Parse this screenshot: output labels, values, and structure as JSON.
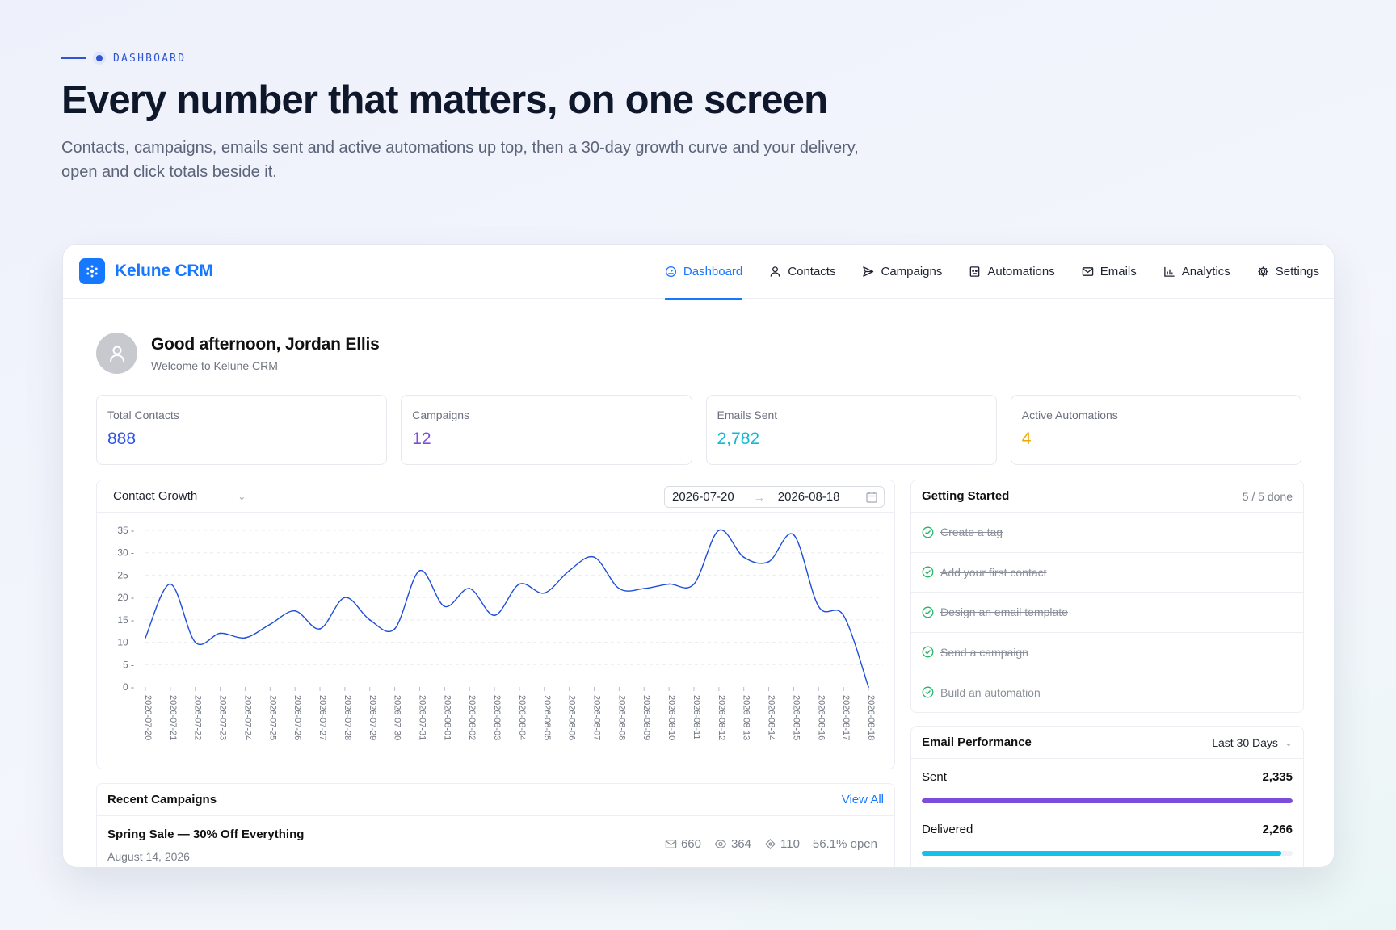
{
  "hero": {
    "eyebrow": "DASHBOARD",
    "title": "Every number that matters, on one screen",
    "subtitle": "Contacts, campaigns, emails sent and active automations up top, then a 30-day growth curve and your delivery, open and click totals beside it."
  },
  "app": {
    "brand": "Kelune CRM",
    "accent": "#1677ff",
    "nav": [
      {
        "label": "Dashboard",
        "icon": "gauge-icon",
        "active": true
      },
      {
        "label": "Contacts",
        "icon": "user-icon",
        "active": false
      },
      {
        "label": "Campaigns",
        "icon": "send-icon",
        "active": false
      },
      {
        "label": "Automations",
        "icon": "robot-icon",
        "active": false
      },
      {
        "label": "Emails",
        "icon": "mail-icon",
        "active": false
      },
      {
        "label": "Analytics",
        "icon": "bar-chart-icon",
        "active": false
      },
      {
        "label": "Settings",
        "icon": "gear-icon",
        "active": false
      }
    ]
  },
  "greeting": {
    "title": "Good afternoon, Jordan Ellis",
    "subtitle": "Welcome to Kelune CRM"
  },
  "stats": [
    {
      "label": "Total Contacts",
      "value": "888",
      "color": "#2f54eb"
    },
    {
      "label": "Campaigns",
      "value": "12",
      "color": "#7c4ddb"
    },
    {
      "label": "Emails Sent",
      "value": "2,782",
      "color": "#13b8d4"
    },
    {
      "label": "Active Automations",
      "value": "4",
      "color": "#f0a500"
    }
  ],
  "growth": {
    "selector": "Contact Growth",
    "date_start": "2026-07-20",
    "date_end": "2026-08-18"
  },
  "chart_data": {
    "type": "line",
    "x": [
      "2026-07-20",
      "2026-07-21",
      "2026-07-22",
      "2026-07-23",
      "2026-07-24",
      "2026-07-25",
      "2026-07-26",
      "2026-07-27",
      "2026-07-28",
      "2026-07-29",
      "2026-07-30",
      "2026-07-31",
      "2026-08-01",
      "2026-08-02",
      "2026-08-03",
      "2026-08-04",
      "2026-08-05",
      "2026-08-06",
      "2026-08-07",
      "2026-08-08",
      "2026-08-09",
      "2026-08-10",
      "2026-08-11",
      "2026-08-12",
      "2026-08-13",
      "2026-08-14",
      "2026-08-15",
      "2026-08-16",
      "2026-08-17",
      "2026-08-18"
    ],
    "series": [
      {
        "values": [
          11,
          23,
          10,
          12,
          11,
          14,
          17,
          13,
          20,
          15,
          13,
          26,
          18,
          22,
          16,
          23,
          21,
          26,
          29,
          22,
          22,
          23,
          23,
          35,
          29,
          28,
          34,
          18,
          16,
          0
        ],
        "color": "#1d4ed8"
      }
    ],
    "ylim": [
      0,
      35
    ],
    "yticks": [
      0,
      5,
      10,
      15,
      20,
      25,
      30,
      35
    ],
    "grid": true
  },
  "getting_started": {
    "title": "Getting Started",
    "progress": "5 / 5 done",
    "tasks": [
      "Create a tag",
      "Add your first contact",
      "Design an email template",
      "Send a campaign",
      "Build an automation"
    ]
  },
  "email_performance": {
    "title": "Email Performance",
    "period": "Last 30 Days",
    "metrics": [
      {
        "label": "Sent",
        "value": "2,335",
        "fraction": 1.0,
        "color": "#7c4ddb"
      },
      {
        "label": "Delivered",
        "value": "2,266",
        "fraction": 0.97,
        "color": "#13c2e8"
      }
    ]
  },
  "recent_campaigns": {
    "title": "Recent Campaigns",
    "view_all": "View All",
    "items": [
      {
        "name": "Spring Sale — 30% Off Everything",
        "date": "August 14, 2026",
        "sent": "660",
        "opens": "364",
        "clicks": "110",
        "open_rate": "56.1% open"
      }
    ]
  }
}
